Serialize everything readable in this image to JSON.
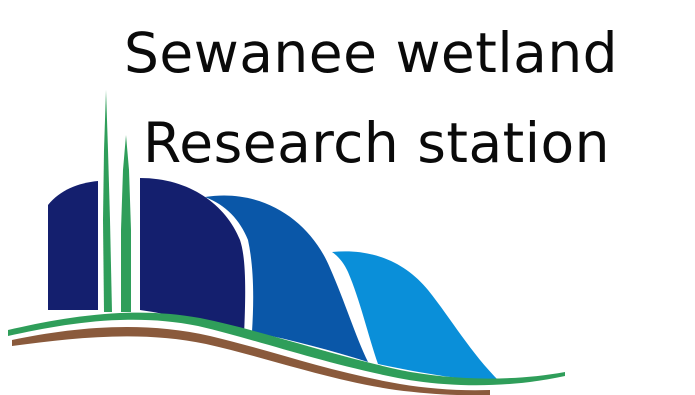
{
  "title": {
    "line1": "Sewanee wetland",
    "line2": "Research station"
  },
  "colors": {
    "navy": "#141f6e",
    "mid_blue": "#0a57a8",
    "light_blue": "#0a8fd9",
    "green": "#2f9e5a",
    "brown": "#8a5a3c"
  },
  "icons": {
    "logo": "wetland-hills-reeds-logo"
  }
}
